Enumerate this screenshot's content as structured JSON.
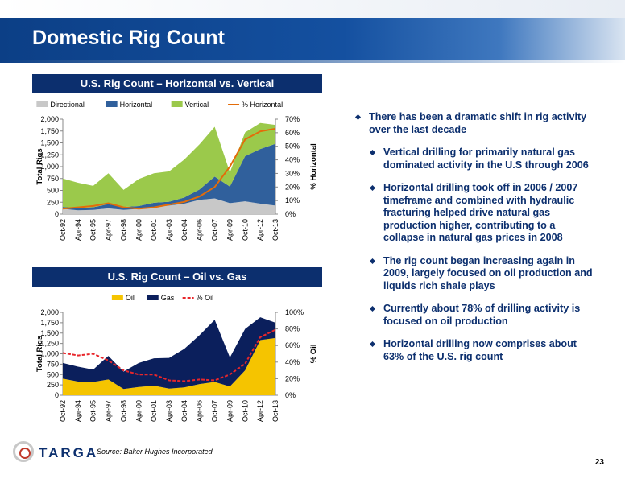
{
  "page": {
    "title": "Domestic Rig Count",
    "page_number": "23",
    "source": "Source: Baker Hughes Incorporated",
    "logo_text": "TARGA"
  },
  "colors": {
    "directional": "#c8c8c8",
    "horizontal": "#30609c",
    "vertical": "#9bc94b",
    "pct_horizontal": "#e36c09",
    "oil": "#f5c400",
    "gas": "#0b1f5c",
    "pct_oil": "#e8262b",
    "header_bg": "#0c2f6e"
  },
  "bullets": [
    {
      "level": 0,
      "text": "There has been a dramatic shift in rig activity over the last decade"
    },
    {
      "level": 1,
      "text": "Vertical drilling for primarily natural gas dominated activity in the U.S through 2006"
    },
    {
      "level": 1,
      "text": "Horizontal drilling took off in 2006 / 2007 timeframe and combined with hydraulic fracturing helped drive natural gas production higher, contributing to a collapse in natural gas prices in 2008"
    },
    {
      "level": 1,
      "text": "The rig count began increasing again in 2009, largely focused on oil production and liquids rich shale plays"
    },
    {
      "level": 1,
      "text": "Currently about 78% of drilling activity is focused on oil production"
    },
    {
      "level": 1,
      "text": "Horizontal drilling now comprises about 63% of the U.S. rig count"
    }
  ],
  "chart_data": [
    {
      "type": "area",
      "title": "U.S. Rig Count – Horizontal vs. Vertical",
      "ylabel": "Total Rigs",
      "y2label": "% Horizontal",
      "ylim": [
        0,
        2000
      ],
      "y2lim": [
        0,
        70
      ],
      "yticks": [
        "2,000",
        "1,750",
        "1,500",
        "1,250",
        "1,000",
        "750",
        "500",
        "250",
        "0"
      ],
      "y2ticks": [
        "70%",
        "60%",
        "50%",
        "40%",
        "30%",
        "20%",
        "10%",
        "0%"
      ],
      "legend_position": "top",
      "x": [
        "Oct-92",
        "Apr-94",
        "Oct-95",
        "Apr-97",
        "Oct-98",
        "Apr-00",
        "Oct-01",
        "Apr-03",
        "Oct-04",
        "Apr-06",
        "Oct-07",
        "Apr-09",
        "Oct-10",
        "Apr-12",
        "Oct-13"
      ],
      "series": [
        {
          "name": "Directional",
          "kind": "stacked-area",
          "values": [
            110,
            80,
            90,
            120,
            90,
            110,
            150,
            180,
            220,
            300,
            330,
            230,
            270,
            220,
            180
          ]
        },
        {
          "name": "Horizontal",
          "kind": "stacked-area",
          "values": [
            40,
            50,
            55,
            90,
            60,
            60,
            90,
            80,
            130,
            220,
            460,
            350,
            950,
            1150,
            1300
          ]
        },
        {
          "name": "Vertical",
          "kind": "stacked-area",
          "values": [
            600,
            530,
            450,
            650,
            360,
            570,
            620,
            640,
            800,
            950,
            1050,
            300,
            500,
            550,
            400
          ]
        },
        {
          "name": "% Horizontal",
          "kind": "line",
          "axis": "right",
          "values": [
            4,
            5,
            6,
            8,
            5,
            4,
            5,
            7,
            9,
            13,
            20,
            35,
            55,
            61,
            63
          ]
        }
      ]
    },
    {
      "type": "area",
      "title": "U.S. Rig Count – Oil vs. Gas",
      "ylabel": "Total Rigs",
      "y2label": "% Oil",
      "ylim": [
        0,
        2000
      ],
      "y2lim": [
        0,
        100
      ],
      "yticks": [
        "2,000",
        "1,750",
        "1,500",
        "1,250",
        "1,000",
        "750",
        "500",
        "250",
        "0"
      ],
      "y2ticks": [
        "100%",
        "80%",
        "60%",
        "40%",
        "20%",
        "0%"
      ],
      "legend_position": "top",
      "x": [
        "Oct-92",
        "Apr-94",
        "Oct-95",
        "Apr-97",
        "Oct-98",
        "Apr-00",
        "Oct-01",
        "Apr-03",
        "Oct-04",
        "Apr-06",
        "Oct-07",
        "Apr-09",
        "Oct-10",
        "Apr-12",
        "Oct-13"
      ],
      "series": [
        {
          "name": "Oil",
          "kind": "stacked-area",
          "values": [
            400,
            330,
            320,
            380,
            150,
            200,
            230,
            160,
            190,
            270,
            320,
            210,
            600,
            1330,
            1380
          ]
        },
        {
          "name": "Gas",
          "kind": "stacked-area",
          "values": [
            380,
            360,
            300,
            570,
            420,
            580,
            660,
            740,
            930,
            1180,
            1500,
            700,
            1000,
            550,
            370
          ]
        },
        {
          "name": "% Oil",
          "kind": "dashed-line",
          "axis": "right",
          "values": [
            51,
            48,
            50,
            42,
            30,
            25,
            25,
            18,
            17,
            19,
            18,
            25,
            38,
            70,
            79
          ]
        }
      ]
    }
  ]
}
